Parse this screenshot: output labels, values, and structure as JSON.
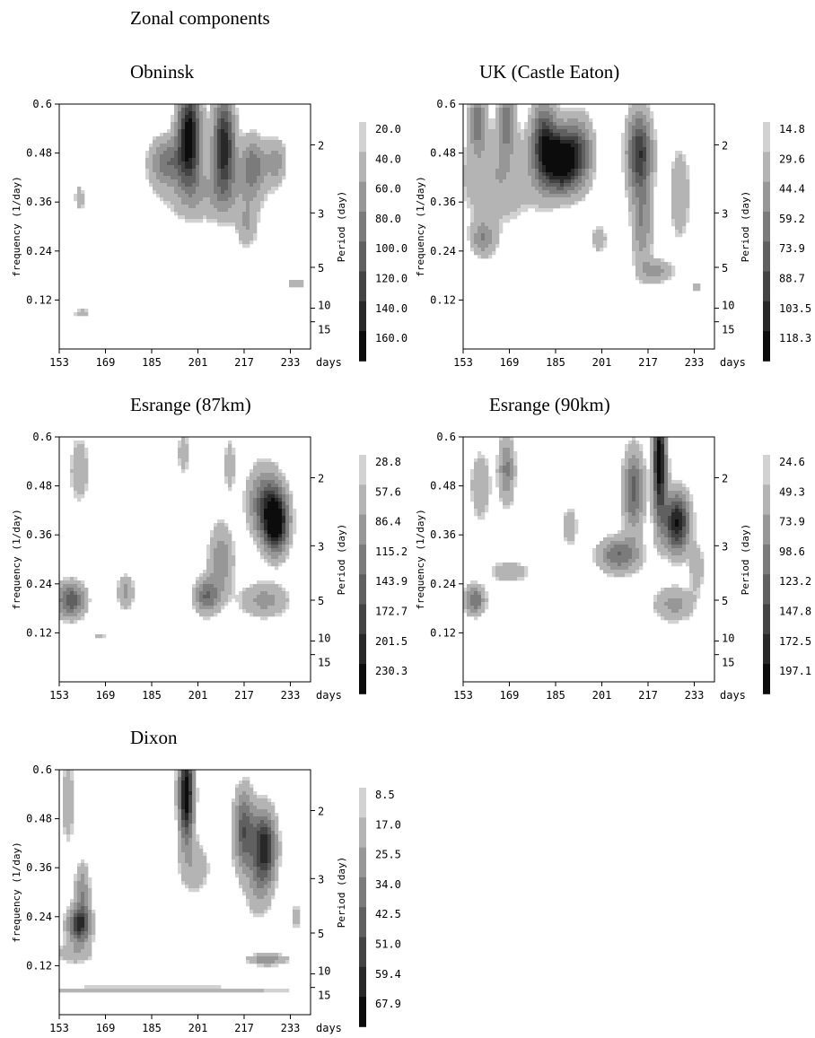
{
  "page_title": "Zonal components",
  "chart_data": [
    {
      "type": "heatmap",
      "title": "Obninsk",
      "xlabel": "days",
      "ylabel": "frequency (1/day)",
      "y2label": "Period (day)",
      "xticks": [
        153,
        169,
        185,
        201,
        217,
        233
      ],
      "yticks": [
        0.12,
        0.24,
        0.36,
        0.48,
        0.6
      ],
      "period_ticks": [
        "2",
        "3",
        "5",
        "10",
        "15"
      ],
      "colorbar_levels": [
        "20.0",
        "40.0",
        "60.0",
        "80.0",
        "100.0",
        "120.0",
        "140.0",
        "160.0"
      ],
      "blobs": [
        {
          "x": 198,
          "y": 0.52,
          "sx": 2.8,
          "sy": 0.08,
          "a": 1.0
        },
        {
          "x": 210,
          "y": 0.5,
          "sx": 2.6,
          "sy": 0.08,
          "a": 0.85
        },
        {
          "x": 190,
          "y": 0.46,
          "sx": 4.0,
          "sy": 0.04,
          "a": 0.45
        },
        {
          "x": 220,
          "y": 0.45,
          "sx": 3.0,
          "sy": 0.05,
          "a": 0.45
        },
        {
          "x": 228,
          "y": 0.46,
          "sx": 2.5,
          "sy": 0.04,
          "a": 0.3
        },
        {
          "x": 205,
          "y": 0.38,
          "sx": 12.0,
          "sy": 0.05,
          "a": 0.22
        },
        {
          "x": 218,
          "y": 0.3,
          "sx": 2.5,
          "sy": 0.04,
          "a": 0.22
        },
        {
          "x": 160,
          "y": 0.37,
          "sx": 1.3,
          "sy": 0.025,
          "a": 0.2
        },
        {
          "x": 161,
          "y": 0.09,
          "sx": 3.0,
          "sy": 0.005,
          "a": 0.2
        },
        {
          "x": 235,
          "y": 0.16,
          "sx": 2.5,
          "sy": 0.008,
          "a": 0.22
        }
      ]
    },
    {
      "type": "heatmap",
      "title": "UK (Castle Eaton)",
      "xlabel": "days",
      "ylabel": "frequency (1/day)",
      "y2label": "Period (day)",
      "xticks": [
        153,
        169,
        185,
        201,
        217,
        233
      ],
      "yticks": [
        0.12,
        0.24,
        0.36,
        0.48,
        0.6
      ],
      "period_ticks": [
        "2",
        "3",
        "5",
        "10",
        "15"
      ],
      "colorbar_levels": [
        "14.8",
        "29.6",
        "44.4",
        "59.2",
        "73.9",
        "88.7",
        "103.5",
        "118.3"
      ],
      "blobs": [
        {
          "x": 187,
          "y": 0.46,
          "sx": 3.5,
          "sy": 0.05,
          "a": 1.0
        },
        {
          "x": 181,
          "y": 0.5,
          "sx": 3.0,
          "sy": 0.07,
          "a": 0.75
        },
        {
          "x": 193,
          "y": 0.48,
          "sx": 3.5,
          "sy": 0.06,
          "a": 0.55
        },
        {
          "x": 214,
          "y": 0.48,
          "sx": 3.0,
          "sy": 0.07,
          "a": 0.75
        },
        {
          "x": 158,
          "y": 0.56,
          "sx": 2.0,
          "sy": 0.05,
          "a": 0.45
        },
        {
          "x": 168,
          "y": 0.56,
          "sx": 2.0,
          "sy": 0.05,
          "a": 0.45
        },
        {
          "x": 165,
          "y": 0.42,
          "sx": 10.0,
          "sy": 0.08,
          "a": 0.25
        },
        {
          "x": 160,
          "y": 0.27,
          "sx": 3.0,
          "sy": 0.03,
          "a": 0.35
        },
        {
          "x": 215,
          "y": 0.3,
          "sx": 2.5,
          "sy": 0.07,
          "a": 0.35
        },
        {
          "x": 220,
          "y": 0.19,
          "sx": 4.0,
          "sy": 0.02,
          "a": 0.3
        },
        {
          "x": 200,
          "y": 0.27,
          "sx": 2.0,
          "sy": 0.025,
          "a": 0.22
        },
        {
          "x": 228,
          "y": 0.38,
          "sx": 2.5,
          "sy": 0.08,
          "a": 0.25
        },
        {
          "x": 234,
          "y": 0.15,
          "sx": 1.2,
          "sy": 0.01,
          "a": 0.2
        }
      ]
    },
    {
      "type": "heatmap",
      "title": "Esrange (87km)",
      "xlabel": "days",
      "ylabel": "frequency (1/day)",
      "y2label": "Period (day)",
      "xticks": [
        153,
        169,
        185,
        201,
        217,
        233
      ],
      "yticks": [
        0.12,
        0.24,
        0.36,
        0.48,
        0.6
      ],
      "period_ticks": [
        "2",
        "3",
        "5",
        "10",
        "15"
      ],
      "colorbar_levels": [
        "28.8",
        "57.6",
        "86.4",
        "115.2",
        "143.9",
        "172.7",
        "201.5",
        "230.3"
      ],
      "blobs": [
        {
          "x": 228,
          "y": 0.39,
          "sx": 3.0,
          "sy": 0.05,
          "a": 1.0
        },
        {
          "x": 224,
          "y": 0.44,
          "sx": 4.0,
          "sy": 0.06,
          "a": 0.5
        },
        {
          "x": 157,
          "y": 0.2,
          "sx": 3.5,
          "sy": 0.03,
          "a": 0.6
        },
        {
          "x": 204,
          "y": 0.21,
          "sx": 3.0,
          "sy": 0.03,
          "a": 0.5
        },
        {
          "x": 209,
          "y": 0.3,
          "sx": 3.0,
          "sy": 0.06,
          "a": 0.35
        },
        {
          "x": 224,
          "y": 0.2,
          "sx": 6.0,
          "sy": 0.03,
          "a": 0.3
        },
        {
          "x": 160,
          "y": 0.52,
          "sx": 2.5,
          "sy": 0.06,
          "a": 0.22
        },
        {
          "x": 176,
          "y": 0.22,
          "sx": 2.0,
          "sy": 0.03,
          "a": 0.3
        },
        {
          "x": 196,
          "y": 0.56,
          "sx": 1.5,
          "sy": 0.04,
          "a": 0.2
        },
        {
          "x": 212,
          "y": 0.53,
          "sx": 1.5,
          "sy": 0.05,
          "a": 0.2
        },
        {
          "x": 167,
          "y": 0.11,
          "sx": 1.5,
          "sy": 0.004,
          "a": 0.2
        }
      ]
    },
    {
      "type": "heatmap",
      "title": "Esrange (90km)",
      "xlabel": "days",
      "ylabel": "frequency (1/day)",
      "y2label": "Period (day)",
      "xticks": [
        153,
        169,
        185,
        201,
        217,
        233
      ],
      "yticks": [
        0.12,
        0.24,
        0.36,
        0.48,
        0.6
      ],
      "period_ticks": [
        "2",
        "3",
        "5",
        "10",
        "15"
      ],
      "colorbar_levels": [
        "24.6",
        "49.3",
        "73.9",
        "98.6",
        "123.2",
        "147.8",
        "172.5",
        "197.1"
      ],
      "blobs": [
        {
          "x": 221,
          "y": 0.54,
          "sx": 1.6,
          "sy": 0.1,
          "a": 1.0
        },
        {
          "x": 227,
          "y": 0.39,
          "sx": 3.0,
          "sy": 0.05,
          "a": 0.9
        },
        {
          "x": 212,
          "y": 0.47,
          "sx": 2.5,
          "sy": 0.07,
          "a": 0.55
        },
        {
          "x": 207,
          "y": 0.31,
          "sx": 5.0,
          "sy": 0.03,
          "a": 0.5
        },
        {
          "x": 157,
          "y": 0.2,
          "sx": 2.5,
          "sy": 0.025,
          "a": 0.5
        },
        {
          "x": 168,
          "y": 0.52,
          "sx": 2.0,
          "sy": 0.06,
          "a": 0.4
        },
        {
          "x": 159,
          "y": 0.48,
          "sx": 2.5,
          "sy": 0.06,
          "a": 0.25
        },
        {
          "x": 226,
          "y": 0.19,
          "sx": 5.0,
          "sy": 0.03,
          "a": 0.3
        },
        {
          "x": 169,
          "y": 0.27,
          "sx": 5.0,
          "sy": 0.02,
          "a": 0.22
        },
        {
          "x": 190,
          "y": 0.38,
          "sx": 2.0,
          "sy": 0.04,
          "a": 0.2
        },
        {
          "x": 234,
          "y": 0.28,
          "sx": 2.0,
          "sy": 0.04,
          "a": 0.2
        }
      ]
    },
    {
      "type": "heatmap",
      "title": "Dixon",
      "xlabel": "days",
      "ylabel": "frequency (1/day)",
      "y2label": "Period (day)",
      "xticks": [
        153,
        169,
        185,
        201,
        217,
        233
      ],
      "yticks": [
        0.12,
        0.24,
        0.36,
        0.48,
        0.6
      ],
      "period_ticks": [
        "2",
        "3",
        "5",
        "10",
        "15"
      ],
      "colorbar_levels": [
        "8.5",
        "17.0",
        "25.5",
        "34.0",
        "42.5",
        "51.0",
        "59.4",
        "67.9"
      ],
      "blobs": [
        {
          "x": 197,
          "y": 0.54,
          "sx": 1.8,
          "sy": 0.08,
          "a": 1.0
        },
        {
          "x": 224,
          "y": 0.41,
          "sx": 2.8,
          "sy": 0.06,
          "a": 0.85
        },
        {
          "x": 217,
          "y": 0.45,
          "sx": 2.5,
          "sy": 0.07,
          "a": 0.6
        },
        {
          "x": 160,
          "y": 0.22,
          "sx": 2.8,
          "sy": 0.03,
          "a": 0.75
        },
        {
          "x": 161,
          "y": 0.3,
          "sx": 1.8,
          "sy": 0.05,
          "a": 0.35
        },
        {
          "x": 225,
          "y": 0.135,
          "sx": 5.0,
          "sy": 0.01,
          "a": 0.35
        },
        {
          "x": 185,
          "y": 0.06,
          "sx": 40.0,
          "sy": 0.008,
          "a": 0.2
        },
        {
          "x": 158,
          "y": 0.15,
          "sx": 5.0,
          "sy": 0.02,
          "a": 0.2
        },
        {
          "x": 200,
          "y": 0.36,
          "sx": 4.0,
          "sy": 0.05,
          "a": 0.2
        },
        {
          "x": 156,
          "y": 0.52,
          "sx": 2.0,
          "sy": 0.08,
          "a": 0.2
        },
        {
          "x": 235,
          "y": 0.24,
          "sx": 1.0,
          "sy": 0.02,
          "a": 0.25
        },
        {
          "x": 222,
          "y": 0.3,
          "sx": 3.0,
          "sy": 0.05,
          "a": 0.2
        }
      ]
    }
  ]
}
